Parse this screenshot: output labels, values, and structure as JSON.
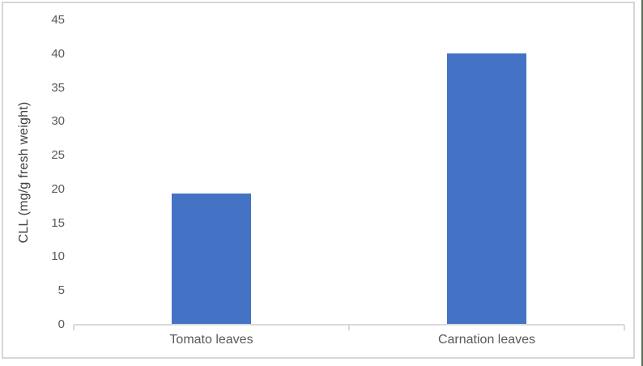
{
  "chart_data": {
    "type": "bar",
    "categories": [
      "Tomato leaves",
      "Carnation leaves"
    ],
    "values": [
      19.3,
      40
    ],
    "title": "",
    "xlabel": "",
    "ylabel": "CLL (mg/g fresh weight)",
    "ylim": [
      0,
      45
    ],
    "yticks": [
      0,
      5,
      10,
      15,
      20,
      25,
      30,
      35,
      40,
      45
    ],
    "grid": false,
    "legend_position": "none",
    "colors": {
      "bar_fill": "#4472c4",
      "axis_line": "#d9d9d9",
      "tick_label": "#595959",
      "axis_title": "#404040",
      "frame_border": "#d6d6d6",
      "right_edge_accent": "#5e6e58",
      "background": "#ffffff"
    }
  }
}
